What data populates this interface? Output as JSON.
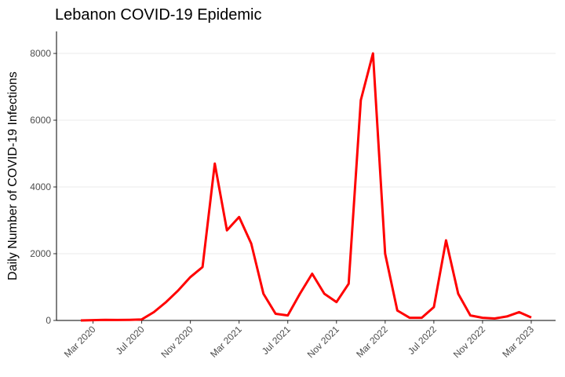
{
  "chart_data": {
    "type": "line",
    "title": "Lebanon COVID-19 Epidemic",
    "y_label": "Daily Number of COVID-19 Infections",
    "x": [
      "2020-02",
      "2020-03",
      "2020-04",
      "2020-05",
      "2020-06",
      "2020-07",
      "2020-08",
      "2020-09",
      "2020-10",
      "2020-11",
      "2020-12",
      "2021-01",
      "2021-02",
      "2021-03",
      "2021-04",
      "2021-05",
      "2021-06",
      "2021-07",
      "2021-08",
      "2021-09",
      "2021-10",
      "2021-11",
      "2021-12",
      "2022-01",
      "2022-02",
      "2022-03",
      "2022-04",
      "2022-05",
      "2022-06",
      "2022-07",
      "2022-08",
      "2022-09",
      "2022-10",
      "2022-11",
      "2022-12",
      "2023-01",
      "2023-02",
      "2023-03"
    ],
    "values": [
      0,
      10,
      20,
      15,
      20,
      30,
      250,
      550,
      900,
      1300,
      1600,
      4700,
      2700,
      3100,
      2300,
      800,
      200,
      150,
      800,
      1400,
      800,
      550,
      1100,
      6600,
      8000,
      2000,
      300,
      80,
      80,
      400,
      2400,
      800,
      150,
      80,
      60,
      120,
      250,
      90
    ],
    "color": "#ff0000",
    "xlim": [
      "2019-12",
      "2023-05"
    ],
    "xticks": [
      {
        "value": "2020-03",
        "label": "Mar 2020"
      },
      {
        "value": "2020-07",
        "label": "Jul 2020"
      },
      {
        "value": "2020-11",
        "label": "Nov 2020"
      },
      {
        "value": "2021-03",
        "label": "Mar 2021"
      },
      {
        "value": "2021-07",
        "label": "Jul 2021"
      },
      {
        "value": "2021-11",
        "label": "Nov 2021"
      },
      {
        "value": "2022-03",
        "label": "Mar 2022"
      },
      {
        "value": "2022-07",
        "label": "Jul 2022"
      },
      {
        "value": "2022-11",
        "label": "Nov 2022"
      },
      {
        "value": "2023-03",
        "label": "Mar 2023"
      }
    ],
    "ylim": [
      0,
      8660
    ],
    "yticks": [
      0,
      2000,
      4000,
      6000,
      8000
    ],
    "grid": true
  }
}
